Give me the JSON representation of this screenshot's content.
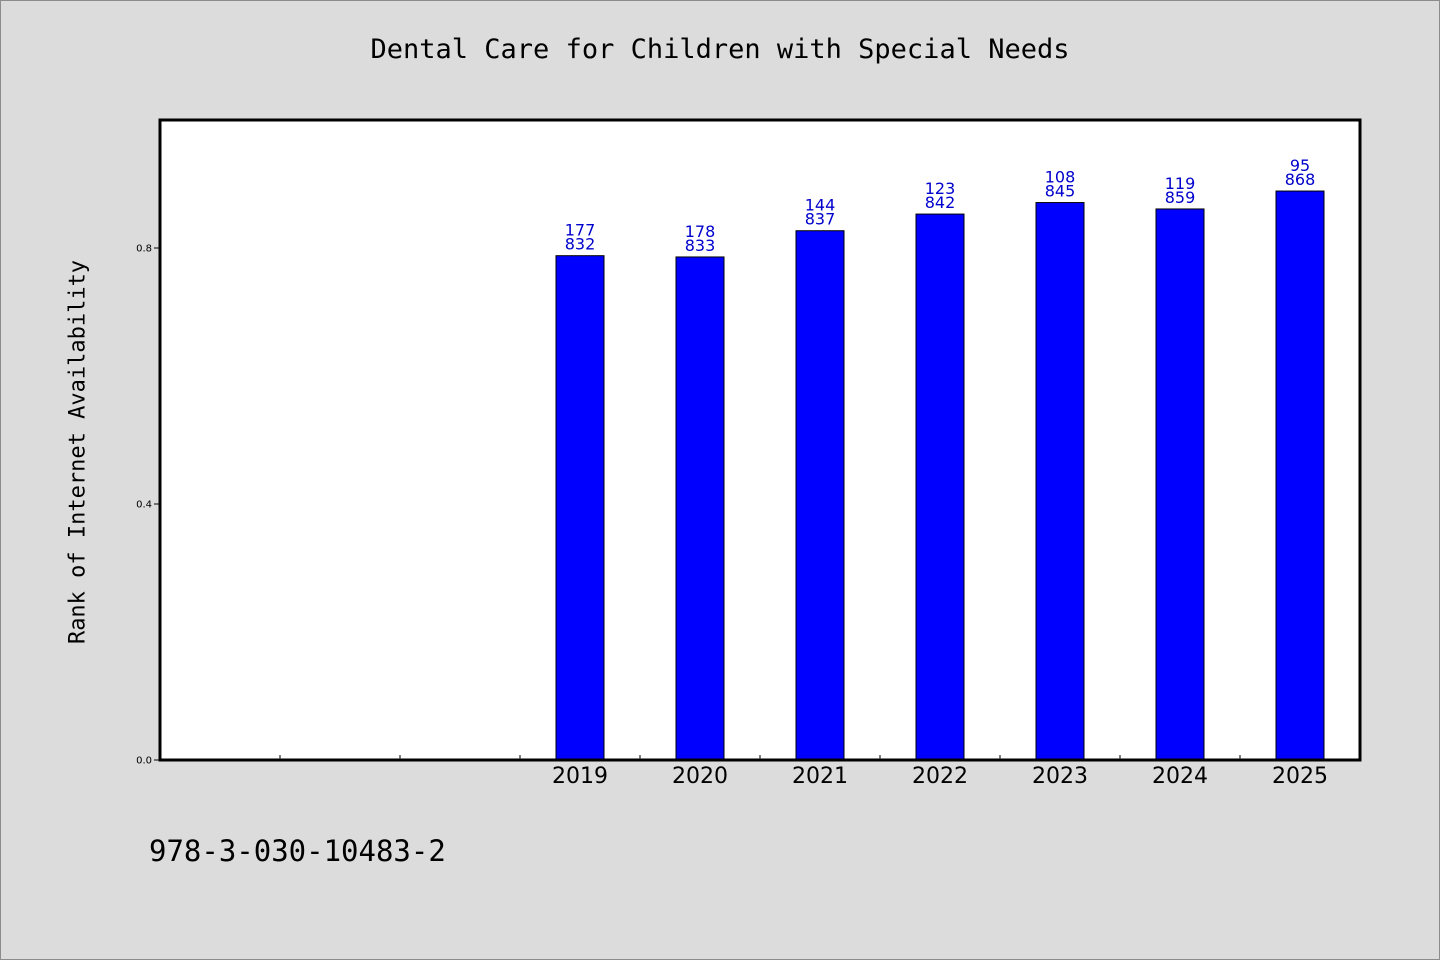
{
  "chart_data": {
    "type": "bar",
    "title": "Dental Care for Children with Special Needs",
    "xlabel": "",
    "ylabel": "Rank of Internet Availability",
    "categories": [
      "2019",
      "2020",
      "2021",
      "2022",
      "2023",
      "2024",
      "2025"
    ],
    "values": [
      0.788,
      0.786,
      0.827,
      0.853,
      0.871,
      0.861,
      0.889
    ],
    "data_labels": [
      [
        "177",
        "832"
      ],
      [
        "178",
        "833"
      ],
      [
        "144",
        "837"
      ],
      [
        "123",
        "842"
      ],
      [
        "108",
        "845"
      ],
      [
        "119",
        "859"
      ],
      [
        "95",
        "868"
      ]
    ],
    "ylim": [
      0,
      1.0
    ],
    "yticks": [
      "0.0",
      "0.4",
      "0.8"
    ],
    "ytick_values": [
      0.0,
      0.4,
      0.8
    ],
    "empty_slots_before": 3,
    "grid": false,
    "bar_color": "#0000ff",
    "label_color": "#0000cc",
    "plot_background": "#ffffff",
    "figure_background": "#dcdcdc"
  },
  "footer_text": "978-3-030-10483-2"
}
